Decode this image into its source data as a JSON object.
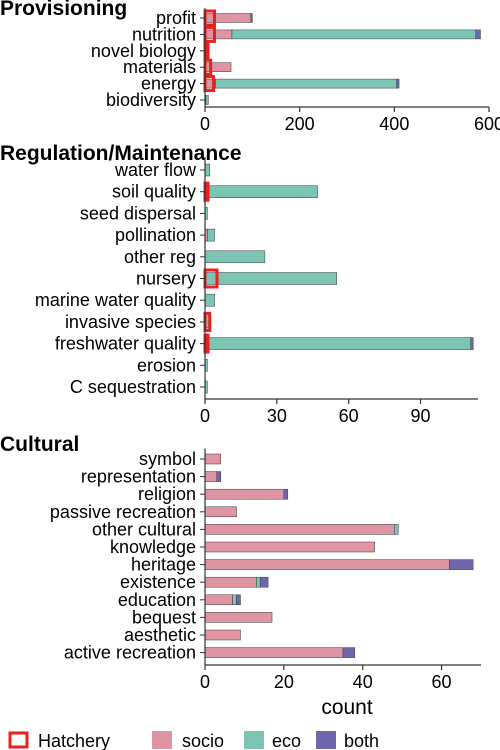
{
  "colors": {
    "socio": "#DE94A3",
    "eco": "#7CC4B4",
    "both": "#6F67AE",
    "hatchery": "#E8211D",
    "stroke": "#3a3a3a"
  },
  "legend": {
    "hatchery": "Hatchery",
    "series": [
      "socio",
      "eco",
      "both"
    ]
  },
  "chart_data": [
    {
      "type": "bar",
      "orientation": "horizontal",
      "stacked": true,
      "title": "Provisioning",
      "xlabel": "",
      "xlim": [
        0,
        600
      ],
      "xticks": [
        0,
        200,
        400,
        600
      ],
      "categories": [
        "profit",
        "nutrition",
        "novel biology",
        "materials",
        "energy",
        "biodiversity"
      ],
      "series": [
        {
          "name": "socio",
          "values": [
            97,
            57,
            2,
            55,
            22,
            2
          ]
        },
        {
          "name": "eco",
          "values": [
            0,
            515,
            0,
            0,
            383,
            5
          ]
        },
        {
          "name": "both",
          "values": [
            3,
            10,
            0,
            0,
            5,
            0
          ]
        }
      ],
      "hatchery": [
        20,
        20,
        4,
        12,
        18,
        0
      ]
    },
    {
      "type": "bar",
      "orientation": "horizontal",
      "stacked": true,
      "title": "Regulation/Maintenance",
      "xlabel": "",
      "xlim": [
        0,
        114
      ],
      "xticks": [
        0,
        30,
        60,
        90
      ],
      "categories": [
        "water flow",
        "soil quality",
        "seed dispersal",
        "pollination",
        "other reg",
        "nursery",
        "marine water quality",
        "invasive species",
        "freshwater quality",
        "erosion",
        "C sequestration"
      ],
      "series": [
        {
          "name": "socio",
          "values": [
            0,
            0,
            0,
            1,
            0,
            0,
            0,
            0,
            0,
            0,
            0
          ]
        },
        {
          "name": "eco",
          "values": [
            2,
            47,
            1,
            3,
            25,
            55,
            4,
            2,
            111,
            1,
            1
          ]
        },
        {
          "name": "both",
          "values": [
            0,
            0,
            0,
            0,
            0,
            0,
            0,
            0,
            1,
            0,
            0
          ]
        }
      ],
      "hatchery": [
        0,
        1,
        0,
        0,
        0,
        5,
        0,
        2,
        1,
        0,
        0
      ]
    },
    {
      "type": "bar",
      "orientation": "horizontal",
      "stacked": true,
      "title": "Cultural",
      "xlabel": "count",
      "xlim": [
        0,
        70
      ],
      "xticks": [
        0,
        20,
        40,
        60
      ],
      "categories": [
        "symbol",
        "representation",
        "religion",
        "passive recreation",
        "other cultural",
        "knowledge",
        "heritage",
        "existence",
        "education",
        "bequest",
        "aesthetic",
        "active recreation"
      ],
      "series": [
        {
          "name": "socio",
          "values": [
            4,
            3,
            20,
            8,
            48,
            43,
            62,
            13,
            7,
            17,
            9,
            35
          ]
        },
        {
          "name": "eco",
          "values": [
            0,
            0,
            0,
            0,
            1,
            0,
            0,
            1,
            1,
            0,
            0,
            0
          ]
        },
        {
          "name": "both",
          "values": [
            0,
            1,
            1,
            0,
            0,
            0,
            6,
            2,
            1,
            0,
            0,
            3
          ]
        }
      ],
      "hatchery": [
        0,
        0,
        0,
        0,
        0,
        0,
        0,
        0,
        0,
        0,
        0,
        0
      ]
    }
  ]
}
